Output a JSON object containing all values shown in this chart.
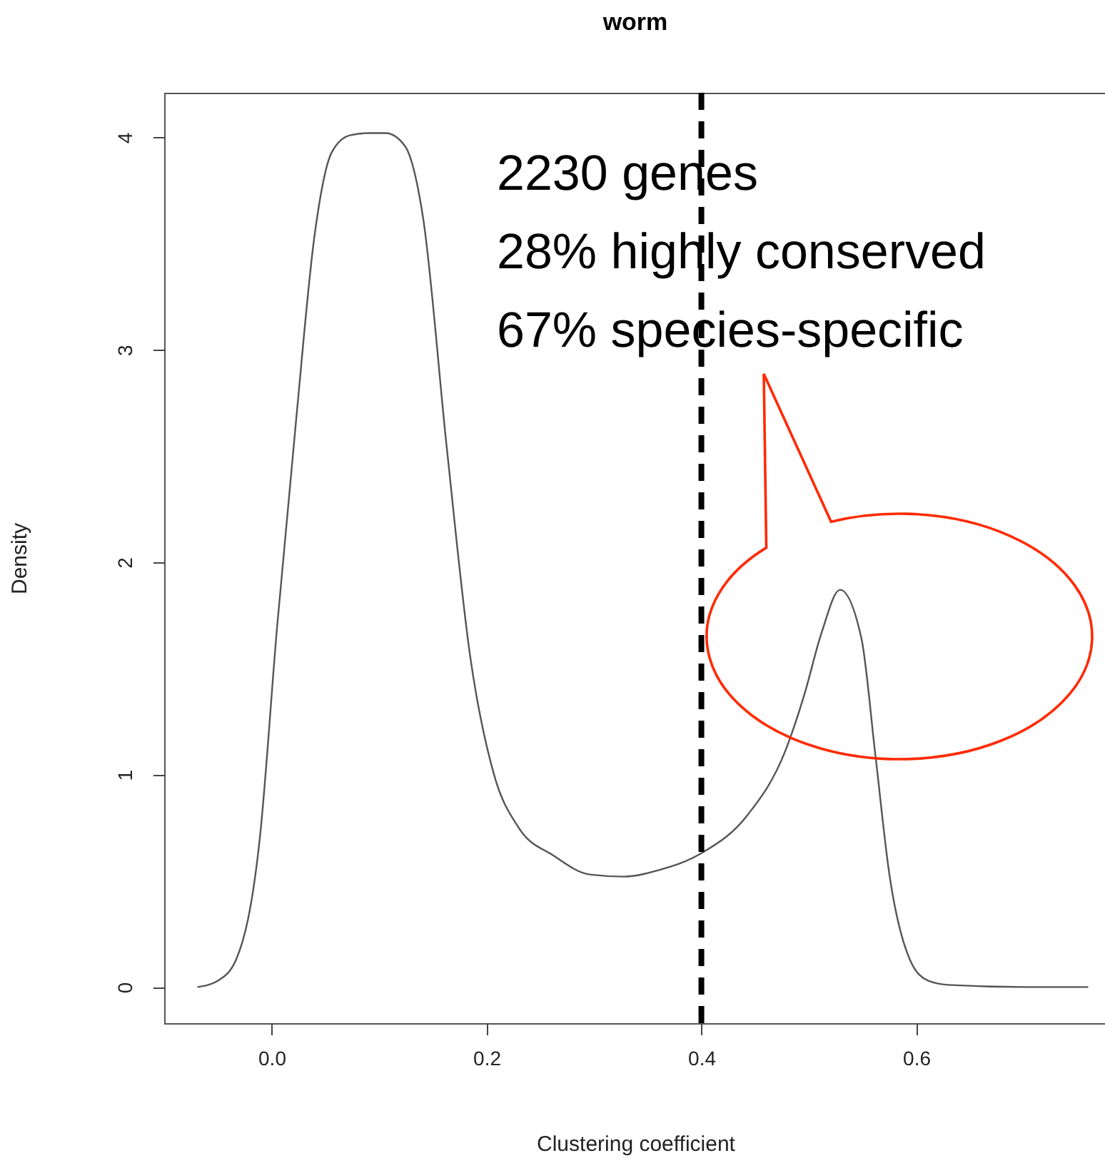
{
  "chart_data": {
    "type": "line",
    "title": "worm",
    "xlabel": "Clustering coefficient",
    "ylabel": "Density",
    "x": [
      -0.069,
      -0.05,
      -0.033,
      -0.011,
      0.005,
      0.023,
      0.04,
      0.056,
      0.073,
      0.09,
      0.106,
      0.124,
      0.141,
      0.163,
      0.185,
      0.207,
      0.23,
      0.262,
      0.296,
      0.328,
      0.36,
      0.4,
      0.443,
      0.478,
      0.496,
      0.512,
      0.529,
      0.549,
      0.562,
      0.575,
      0.594,
      0.611,
      0.63,
      0.7,
      0.76
    ],
    "series": [
      {
        "color": "#555555",
        "values": [
          0,
          0.03,
          0.13,
          0.7,
          1.69,
          2.68,
          3.54,
          3.93,
          4.01,
          4.02,
          4.02,
          3.96,
          3.62,
          2.54,
          1.55,
          1.0,
          0.75,
          0.62,
          0.53,
          0.52,
          0.55,
          0.63,
          0.81,
          1.11,
          1.38,
          1.67,
          1.87,
          1.64,
          1.09,
          0.53,
          0.13,
          0.03,
          0.01,
          0,
          0
        ]
      }
    ],
    "xlim": [
      -0.1,
      0.777
    ],
    "ylim": [
      -0.17,
      4.21
    ],
    "xticks": [
      {
        "value": 0,
        "label": "0.0"
      },
      0.2,
      0.4,
      0.6
    ],
    "yticks": [
      0,
      1,
      2,
      3,
      4
    ],
    "grid": false,
    "marker": "none",
    "line_style": "solid",
    "ref_lines": [
      {
        "axis": "x",
        "value": 0.4,
        "color": "#000000",
        "line_style": "dashed"
      }
    ],
    "annotations": [
      "2230 genes\n28% highly conserved\n67% species-specific"
    ]
  }
}
